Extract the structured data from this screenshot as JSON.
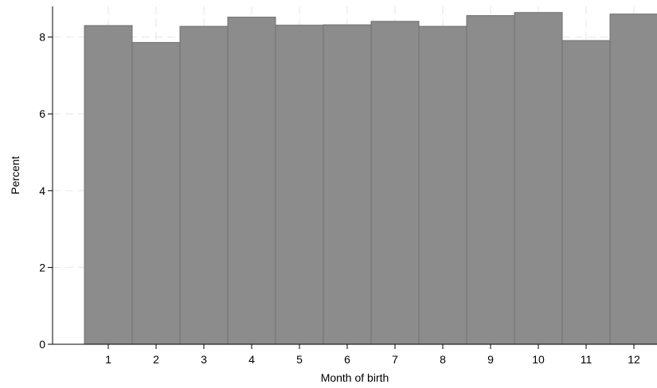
{
  "chart_data": {
    "type": "bar",
    "categories": [
      "1",
      "2",
      "3",
      "4",
      "5",
      "6",
      "7",
      "8",
      "9",
      "10",
      "11",
      "12"
    ],
    "values": [
      8.3,
      7.86,
      8.28,
      8.52,
      8.31,
      8.32,
      8.41,
      8.28,
      8.56,
      8.64,
      7.91,
      8.6
    ],
    "xlabel": "Month of birth",
    "ylabel": "Percent",
    "ylim": [
      0,
      8.8
    ],
    "yticks": [
      0,
      2,
      4,
      6,
      8
    ],
    "grid": true,
    "legend": "none",
    "colors": {
      "bar_fill": "#8c8c8c",
      "bar_edge": "#6f6f6f",
      "grid": "#e6e6e6",
      "axis": "#000000"
    }
  }
}
